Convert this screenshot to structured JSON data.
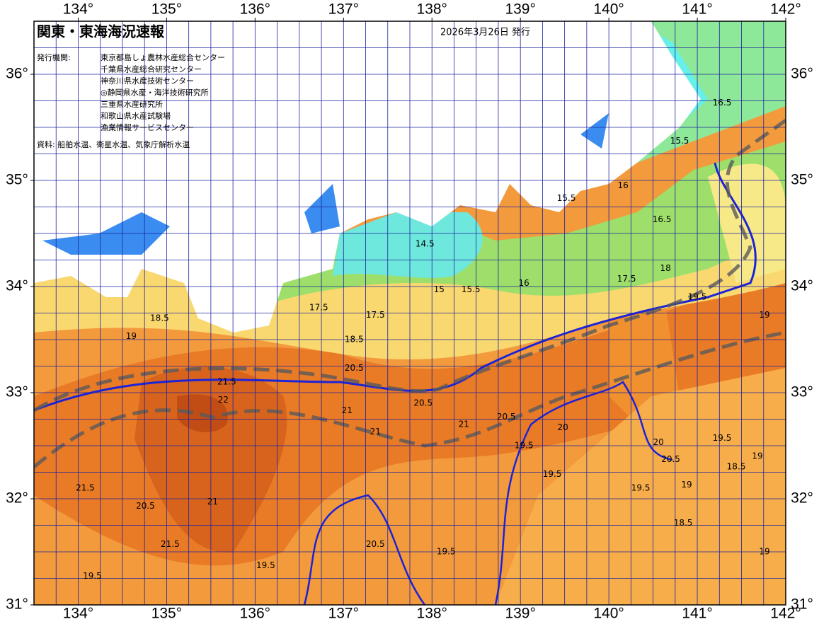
{
  "map": {
    "title": "関東・東海海況速報",
    "issue_date": "2026年3月26日 発行",
    "agency_label": "発行機関:",
    "agencies": [
      "東京都島しょ農林水産総合センター",
      "千葉県水産総合研究センター",
      "神奈川県水産技術センター",
      "◎静岡県水産・海洋技術研究所",
      "三重県水産研究所",
      "和歌山県水産試験場",
      "漁業情報サービスセンター"
    ],
    "source": "資料: 船舶水温、衛星水温、気象庁解析水温",
    "lonlim": [
      133.5,
      142
    ],
    "latlim": [
      31,
      36.5
    ],
    "lonticks": [
      {
        "value": 134,
        "label": "134°"
      },
      {
        "value": 135,
        "label": "135°"
      },
      {
        "value": 136,
        "label": "136°"
      },
      {
        "value": 137,
        "label": "137°"
      },
      {
        "value": 138,
        "label": "138°"
      },
      {
        "value": 139,
        "label": "139°"
      },
      {
        "value": 140,
        "label": "140°"
      },
      {
        "value": 141,
        "label": "141°"
      },
      {
        "value": 142,
        "label": "142°"
      }
    ],
    "latticks": [
      {
        "value": 31,
        "label": "31°"
      },
      {
        "value": 32,
        "label": "32°"
      },
      {
        "value": 33,
        "label": "33°"
      },
      {
        "value": 34,
        "label": "34°"
      },
      {
        "value": 35,
        "label": "35°"
      },
      {
        "value": 36,
        "label": "36°"
      }
    ],
    "grid_step": 0.25,
    "contour_labels": [
      {
        "value": 18.5,
        "lon": 134.92,
        "lat": 33.7
      },
      {
        "value": 19,
        "lon": 134.6,
        "lat": 33.53
      },
      {
        "value": 21.5,
        "lon": 135.68,
        "lat": 33.1
      },
      {
        "value": 22,
        "lon": 135.64,
        "lat": 32.93
      },
      {
        "value": 21,
        "lon": 137.04,
        "lat": 32.83
      },
      {
        "value": 20.5,
        "lon": 137.12,
        "lat": 33.23
      },
      {
        "value": 20.5,
        "lon": 137.9,
        "lat": 32.9
      },
      {
        "value": 21,
        "lon": 137.36,
        "lat": 32.63
      },
      {
        "value": 21,
        "lon": 138.36,
        "lat": 32.7
      },
      {
        "value": 20.5,
        "lon": 138.84,
        "lat": 32.77
      },
      {
        "value": 20,
        "lon": 139.48,
        "lat": 32.67
      },
      {
        "value": 19.5,
        "lon": 139.04,
        "lat": 32.5
      },
      {
        "value": 19.5,
        "lon": 139.36,
        "lat": 32.23
      },
      {
        "value": 19.5,
        "lon": 140.36,
        "lat": 32.1
      },
      {
        "value": 20,
        "lon": 140.56,
        "lat": 32.53
      },
      {
        "value": 20.5,
        "lon": 140.7,
        "lat": 32.37
      },
      {
        "value": 19.5,
        "lon": 141.28,
        "lat": 32.57
      },
      {
        "value": 19,
        "lon": 141.68,
        "lat": 32.4
      },
      {
        "value": 18.5,
        "lon": 141.44,
        "lat": 32.3
      },
      {
        "value": 19,
        "lon": 141.76,
        "lat": 33.73
      },
      {
        "value": 19.5,
        "lon": 141.0,
        "lat": 33.9
      },
      {
        "value": 18,
        "lon": 140.64,
        "lat": 34.17
      },
      {
        "value": 17.5,
        "lon": 140.2,
        "lat": 34.07
      },
      {
        "value": 16.5,
        "lon": 140.6,
        "lat": 34.63
      },
      {
        "value": 16,
        "lon": 140.16,
        "lat": 34.95
      },
      {
        "value": 16.5,
        "lon": 141.28,
        "lat": 35.73
      },
      {
        "value": 15.5,
        "lon": 140.8,
        "lat": 35.37
      },
      {
        "value": 15.5,
        "lon": 139.52,
        "lat": 34.83
      },
      {
        "value": 14.5,
        "lon": 137.92,
        "lat": 34.4
      },
      {
        "value": 15,
        "lon": 138.08,
        "lat": 33.97
      },
      {
        "value": 15.5,
        "lon": 138.44,
        "lat": 33.97
      },
      {
        "value": 16,
        "lon": 139.04,
        "lat": 34.03
      },
      {
        "value": 17.5,
        "lon": 136.72,
        "lat": 33.8
      },
      {
        "value": 18.5,
        "lon": 137.12,
        "lat": 33.5
      },
      {
        "value": 17.5,
        "lon": 137.36,
        "lat": 33.73
      },
      {
        "value": 21.5,
        "lon": 134.08,
        "lat": 32.1
      },
      {
        "value": 20.5,
        "lon": 134.76,
        "lat": 31.93
      },
      {
        "value": 21,
        "lon": 135.52,
        "lat": 31.97
      },
      {
        "value": 21.5,
        "lon": 135.04,
        "lat": 31.57
      },
      {
        "value": 20.5,
        "lon": 137.36,
        "lat": 31.57
      },
      {
        "value": 19.5,
        "lon": 138.16,
        "lat": 31.5
      },
      {
        "value": 19.5,
        "lon": 136.12,
        "lat": 31.37
      },
      {
        "value": 18.5,
        "lon": 140.84,
        "lat": 31.77
      },
      {
        "value": 19,
        "lon": 141.76,
        "lat": 31.5
      },
      {
        "value": 19,
        "lon": 140.88,
        "lat": 32.13
      },
      {
        "value": 19.5,
        "lon": 134.16,
        "lat": 31.27
      }
    ]
  }
}
